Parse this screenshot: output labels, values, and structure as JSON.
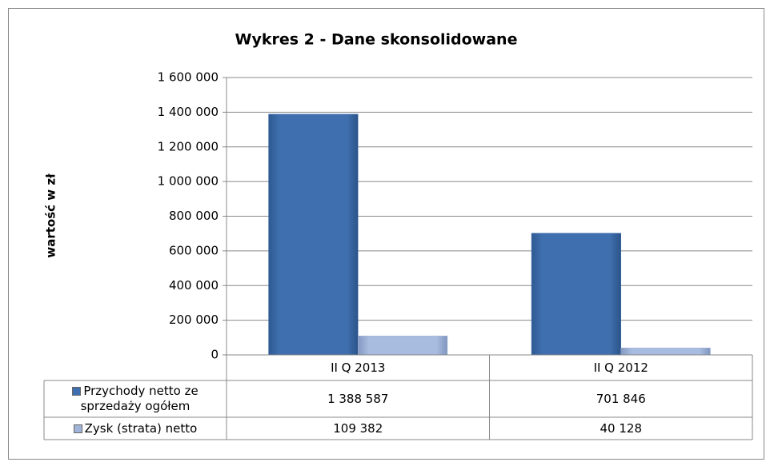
{
  "chart_data": {
    "type": "bar",
    "title": "Wykres 2 - Dane skonsolidowane",
    "ylabel": "wartość w zł",
    "categories": [
      "II Q 2013",
      "II Q 2012"
    ],
    "series": [
      {
        "name": "Przychody netto ze sprzedaży ogółem",
        "color": "#3f6fae",
        "values": [
          1388587,
          701846
        ],
        "value_labels": [
          "1 388 587",
          "701 846"
        ]
      },
      {
        "name": "Zysk (strata) netto",
        "color": "#9fb4d8",
        "values": [
          109382,
          40128
        ],
        "value_labels": [
          "109 382",
          "40 128"
        ]
      }
    ],
    "ylim": [
      0,
      1600000
    ],
    "yticks": [
      0,
      {
        "value": 200000,
        "label": "200 000"
      },
      {
        "value": 400000,
        "label": "400 000"
      },
      {
        "value": 600000,
        "label": "600 000"
      },
      {
        "value": 800000,
        "label": "800 000"
      },
      {
        "value": 1000000,
        "label": "1 000 000"
      },
      {
        "value": 1200000,
        "label": "1 200 000"
      },
      {
        "value": 1400000,
        "label": "1 400 000"
      },
      {
        "value": 1600000,
        "label": "1 600 000"
      }
    ],
    "grid": true
  }
}
